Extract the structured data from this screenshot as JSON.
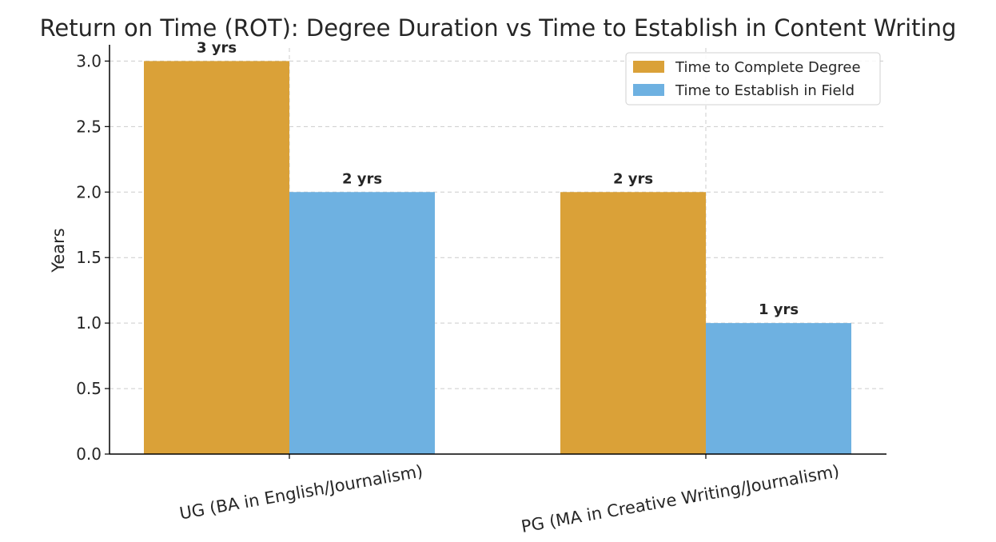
{
  "chart_data": {
    "type": "bar",
    "title": "Return on Time (ROT): Degree Duration vs Time to Establish in Content Writing",
    "xlabel": "",
    "ylabel": "Years",
    "categories": [
      "UG (BA in English/Journalism)",
      "PG (MA in Creative Writing/Journalism)"
    ],
    "series": [
      {
        "name": "Time to Complete Degree",
        "values": [
          3,
          2
        ],
        "color": "#DAA138",
        "labels": [
          "3 yrs",
          "2 yrs"
        ]
      },
      {
        "name": "Time to Establish in Field",
        "values": [
          2,
          1
        ],
        "color": "#6EB1E1",
        "labels": [
          "2 yrs",
          "1 yrs"
        ]
      }
    ],
    "ylim": [
      0,
      3.1
    ],
    "yticks": [
      "0.0",
      "0.5",
      "1.0",
      "1.5",
      "2.0",
      "2.5",
      "3.0"
    ],
    "grid": true,
    "legend_position": "top-right"
  }
}
